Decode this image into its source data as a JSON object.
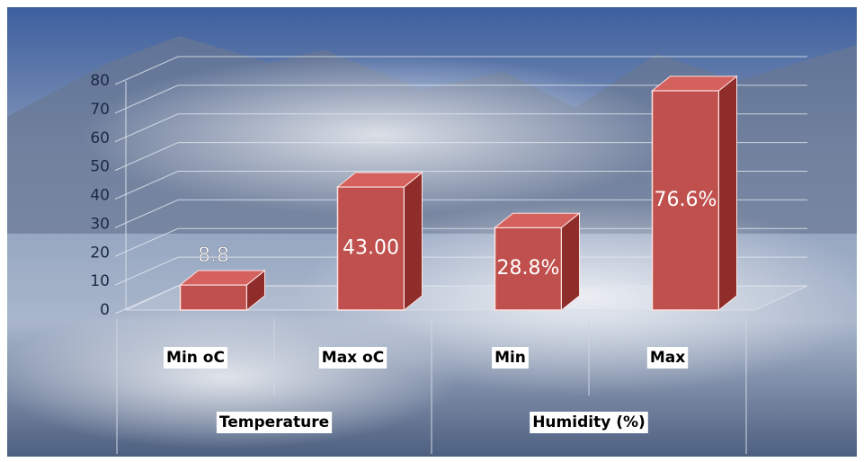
{
  "chart_data": {
    "type": "bar3d",
    "categories": [
      "Min oC",
      "Max oC",
      "Min",
      "Max"
    ],
    "groups": [
      "Temperature",
      "Humidity (%)"
    ],
    "values": [
      8.8,
      43.0,
      28.8,
      76.6
    ],
    "value_labels": [
      "8.8",
      "43.00",
      "28.8%",
      "76.6%"
    ],
    "color": "#c0504d",
    "ylim": [
      0,
      80
    ],
    "yticks": [
      0,
      10,
      20,
      30,
      40,
      50,
      60,
      70,
      80
    ],
    "grid": true
  }
}
